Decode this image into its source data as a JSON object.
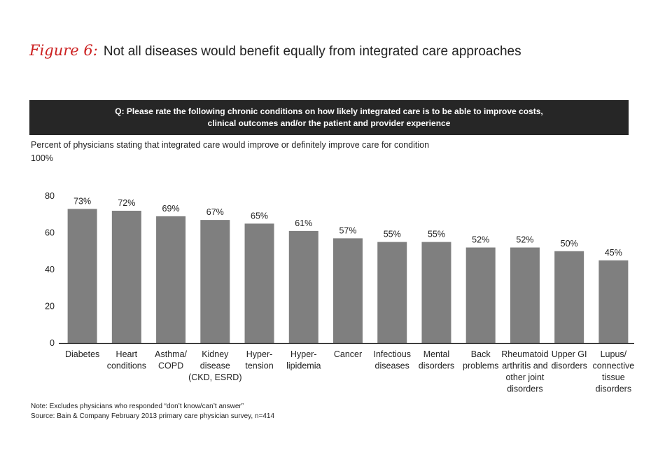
{
  "figure": {
    "number_label": "Figure 6:",
    "title": "Not all diseases would benefit equally from integrated care approaches"
  },
  "question": {
    "line1": "Q: Please rate the following chronic conditions on how likely integrated care is to be able to improve costs,",
    "line2": "clinical outcomes and/or the patient and provider experience"
  },
  "colors": {
    "bar": "#7f7f7f",
    "banner": "#262626",
    "accent": "#cc2020"
  },
  "chart_data": {
    "type": "bar",
    "title": "Percent of physicians stating that integrated care would improve or definitely improve care for condition",
    "ylabel": "Percent of physicians stating that integrated care would improve or definitely improve care for condition",
    "y_top_label": "100%",
    "ylim": [
      0,
      100
    ],
    "yticks": [
      0,
      20,
      40,
      60,
      80
    ],
    "grid": false,
    "categories": [
      [
        "Diabetes"
      ],
      [
        "Heart",
        "conditions"
      ],
      [
        "Asthma/",
        "COPD"
      ],
      [
        "Kidney",
        "disease",
        "(CKD, ESRD)"
      ],
      [
        "Hyper-",
        "tension"
      ],
      [
        "Hyper-",
        "lipidemia"
      ],
      [
        "Cancer"
      ],
      [
        "Infectious",
        "diseases"
      ],
      [
        "Mental",
        "disorders"
      ],
      [
        "Back",
        "problems"
      ],
      [
        "Rheumatoid",
        "arthritis and",
        "other joint",
        "disorders"
      ],
      [
        "Upper GI",
        "disorders"
      ],
      [
        "Lupus/",
        "connective",
        "tissue",
        "disorders"
      ]
    ],
    "values": [
      73,
      72,
      69,
      67,
      65,
      61,
      57,
      55,
      55,
      52,
      52,
      50,
      45
    ],
    "value_labels": [
      "73%",
      "72%",
      "69%",
      "67%",
      "65%",
      "61%",
      "57%",
      "55%",
      "55%",
      "52%",
      "52%",
      "50%",
      "45%"
    ]
  },
  "notes": {
    "note": "Note: Excludes physicians who responded “don’t know/can’t answer”",
    "source": "Source: Bain & Company February 2013 primary care physician survey, n=414"
  }
}
